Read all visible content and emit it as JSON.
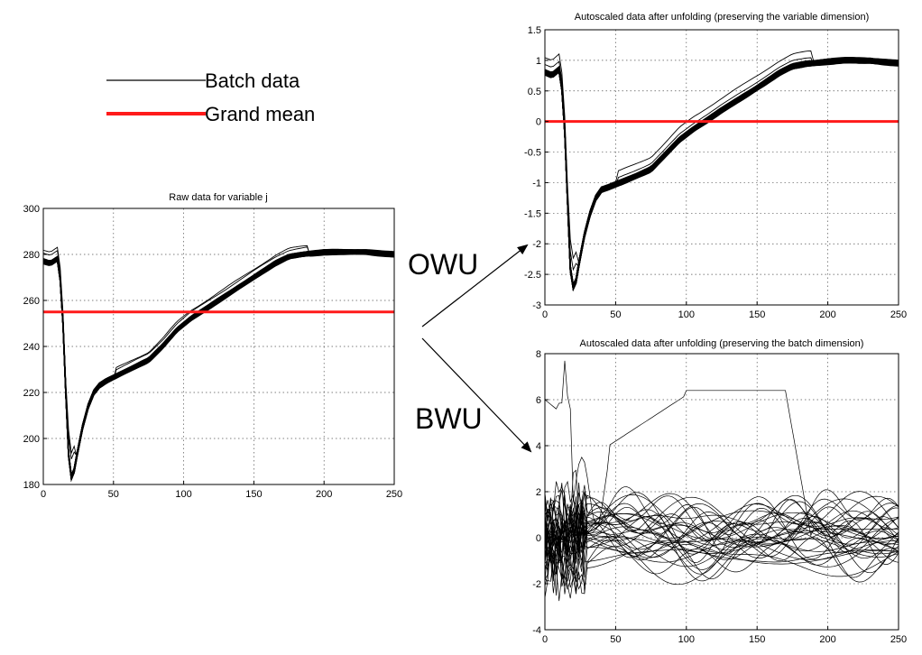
{
  "legend": {
    "batch_label": "Batch data",
    "mean_label": "Grand mean",
    "batch_color": "#000000",
    "mean_color": "#ff1a1a"
  },
  "arrows": {
    "owu_label": "OWU",
    "bwu_label": "BWU"
  },
  "chart_data": [
    {
      "id": "raw",
      "type": "line",
      "title": "Raw data for variable j",
      "xlim": [
        0,
        250
      ],
      "ylim": [
        180,
        300
      ],
      "xticks": [
        0,
        50,
        100,
        150,
        200,
        250
      ],
      "yticks": [
        180,
        200,
        220,
        240,
        260,
        280,
        300
      ],
      "grid": true,
      "mean": 255,
      "series_name": "Batch data",
      "mean_name": "Grand mean",
      "curve_x": [
        0,
        5,
        10,
        13,
        16,
        18,
        20,
        22,
        25,
        28,
        32,
        36,
        40,
        45,
        55,
        65,
        75,
        85,
        95,
        105,
        115,
        125,
        135,
        145,
        155,
        165,
        175,
        185,
        200,
        215,
        230,
        250
      ],
      "curve_y": [
        277,
        276,
        278,
        265,
        220,
        193,
        183,
        186,
        196,
        205,
        214,
        220,
        223,
        225,
        228,
        231,
        234,
        240,
        247,
        252,
        256,
        260,
        264,
        268,
        272,
        276,
        279,
        280,
        281,
        281,
        281,
        280
      ]
    },
    {
      "id": "owu",
      "type": "line",
      "title": "Autoscaled data after unfolding (preserving the variable dimension)",
      "xlim": [
        0,
        250
      ],
      "ylim": [
        -3,
        1.5
      ],
      "xticks": [
        0,
        50,
        100,
        150,
        200,
        250
      ],
      "yticks": [
        -3,
        -2.5,
        -2,
        -1.5,
        -1,
        -0.5,
        0,
        0.5,
        1,
        1.5
      ],
      "grid": true,
      "mean": 0,
      "series_name": "Batch data",
      "mean_name": "Grand mean",
      "curve_x": [
        0,
        5,
        10,
        13,
        16,
        18,
        20,
        22,
        25,
        28,
        32,
        36,
        40,
        45,
        55,
        65,
        75,
        85,
        95,
        105,
        115,
        125,
        135,
        145,
        155,
        165,
        175,
        185,
        200,
        215,
        230,
        250
      ],
      "curve_y": [
        0.8,
        0.75,
        0.85,
        0.4,
        -1.3,
        -2.4,
        -2.7,
        -2.6,
        -2.2,
        -1.85,
        -1.5,
        -1.25,
        -1.12,
        -1.08,
        -0.98,
        -0.88,
        -0.78,
        -0.55,
        -0.3,
        -0.12,
        0.03,
        0.18,
        0.33,
        0.48,
        0.63,
        0.78,
        0.9,
        0.95,
        0.98,
        1.0,
        1.0,
        0.95
      ]
    },
    {
      "id": "bwu",
      "type": "line",
      "title": "Autoscaled data after unfolding (preserving the batch dimension)",
      "xlim": [
        0,
        250
      ],
      "ylim": [
        -4,
        8
      ],
      "xticks": [
        0,
        50,
        100,
        150,
        200,
        250
      ],
      "yticks": [
        -4,
        -2,
        0,
        2,
        4,
        6,
        8
      ],
      "grid": true,
      "series_name": "Batch data"
    }
  ]
}
